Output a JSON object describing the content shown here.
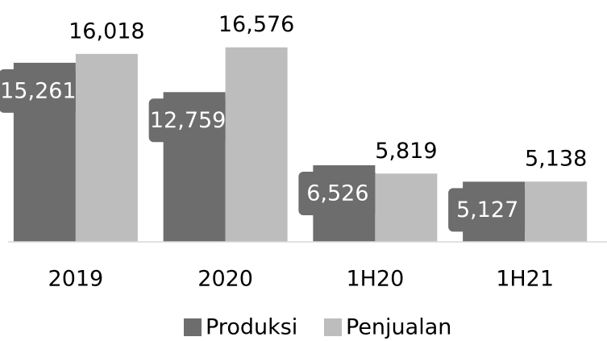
{
  "chart_data": {
    "type": "bar",
    "categories": [
      "2019",
      "2020",
      "1H20",
      "1H21"
    ],
    "series": [
      {
        "name": "Produksi",
        "color": "#6d6d6d",
        "values": [
          15261,
          12759,
          6526,
          5127
        ],
        "value_labels": [
          "15,261",
          "12,759",
          "6,526",
          "5,127"
        ]
      },
      {
        "name": "Penjualan",
        "color": "#bdbdbd",
        "values": [
          16018,
          16576,
          5819,
          5138
        ],
        "value_labels": [
          "16,018",
          "16,576",
          "5,819",
          "5,138"
        ]
      }
    ],
    "ylim": [
      0,
      18000
    ]
  }
}
